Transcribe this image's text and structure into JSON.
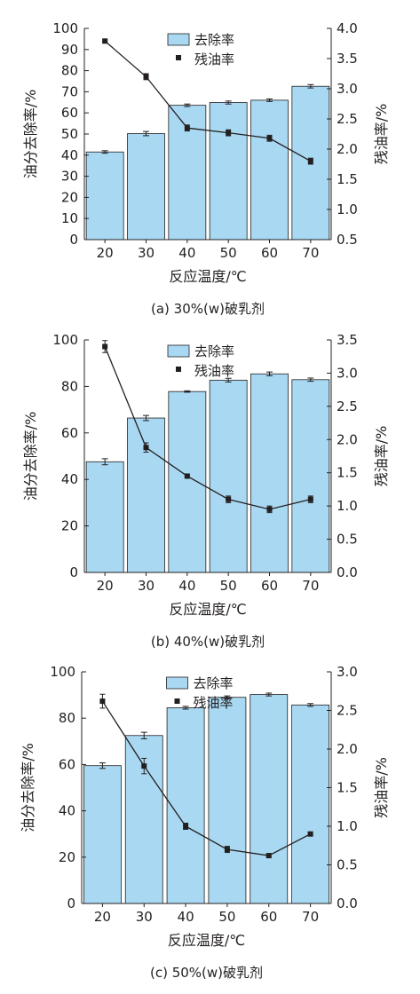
{
  "chart_data": [
    {
      "type": "bar",
      "caption": "(a) 30%(w)破乳剂",
      "xlabel": "反应温度/℃",
      "ylabel": "油分去除率/%",
      "y2label": "残油率/%",
      "categories": [
        "20",
        "30",
        "40",
        "50",
        "60",
        "70"
      ],
      "ylim": [
        0,
        100
      ],
      "yticks": [
        0,
        10,
        20,
        30,
        40,
        50,
        60,
        70,
        80,
        90,
        100
      ],
      "y2lim": [
        0.5,
        4.0
      ],
      "y2ticks": [
        "0.5",
        "1.0",
        "1.5",
        "2.0",
        "2.5",
        "3.0",
        "3.5",
        "4.0"
      ],
      "legend": "top-center",
      "series": [
        {
          "name": "去除率",
          "type": "bar",
          "axis": "left",
          "values": [
            41.5,
            50.2,
            63.6,
            64.9,
            66.0,
            72.6
          ],
          "errors": [
            0.6,
            1.0,
            0.6,
            0.7,
            0.6,
            0.8
          ]
        },
        {
          "name": "残油率",
          "type": "line",
          "axis": "right",
          "values": [
            3.79,
            3.2,
            2.35,
            2.27,
            2.18,
            1.8
          ],
          "errors": [
            0.02,
            0.05,
            0.05,
            0.05,
            0.05,
            0.05
          ]
        }
      ]
    },
    {
      "type": "bar",
      "caption": "(b) 40%(w)破乳剂",
      "xlabel": "反应温度/℃",
      "ylabel": "油分去除率/%",
      "y2label": "残油率/%",
      "categories": [
        "20",
        "30",
        "40",
        "50",
        "60",
        "70"
      ],
      "ylim": [
        0,
        100
      ],
      "yticks": [
        0,
        20,
        40,
        60,
        80,
        100
      ],
      "y2lim": [
        0.0,
        3.5
      ],
      "y2ticks": [
        "0.0",
        "0.5",
        "1.0",
        "1.5",
        "2.0",
        "2.5",
        "3.0",
        "3.5"
      ],
      "legend": "top-center",
      "series": [
        {
          "name": "去除率",
          "type": "bar",
          "axis": "left",
          "values": [
            47.6,
            66.4,
            77.8,
            82.7,
            85.4,
            82.9
          ],
          "errors": [
            1.3,
            1.1,
            0.3,
            0.8,
            0.8,
            0.7
          ]
        },
        {
          "name": "残油率",
          "type": "line",
          "axis": "right",
          "values": [
            3.4,
            1.88,
            1.45,
            1.1,
            0.95,
            1.1
          ],
          "errors": [
            0.09,
            0.07,
            0.02,
            0.05,
            0.05,
            0.05
          ]
        }
      ]
    },
    {
      "type": "bar",
      "caption": "(c) 50%(w)破乳剂",
      "xlabel": "反应温度/℃",
      "ylabel": "油分去除率/%",
      "y2label": "残油率/%",
      "categories": [
        "20",
        "30",
        "40",
        "50",
        "60",
        "70"
      ],
      "ylim": [
        0,
        100
      ],
      "yticks": [
        0,
        20,
        40,
        60,
        80,
        100
      ],
      "y2lim": [
        0.0,
        3.0
      ],
      "y2ticks": [
        "0.0",
        "0.5",
        "1.0",
        "1.5",
        "2.0",
        "2.5",
        "3.0"
      ],
      "legend": "top-center",
      "series": [
        {
          "name": "去除率",
          "type": "bar",
          "axis": "left",
          "values": [
            59.5,
            72.5,
            84.5,
            89.0,
            90.2,
            85.7
          ],
          "errors": [
            1.2,
            1.4,
            0.6,
            0.6,
            0.6,
            0.6
          ]
        },
        {
          "name": "残油率",
          "type": "line",
          "axis": "right",
          "values": [
            2.62,
            1.78,
            1.0,
            0.7,
            0.62,
            0.9
          ],
          "errors": [
            0.09,
            0.1,
            0.04,
            0.04,
            0.02,
            0.02
          ]
        }
      ]
    }
  ],
  "colors": {
    "bar_fill": "#a9d9f2",
    "bar_stroke": "#231f20",
    "line": "#231f20",
    "text": "#231f20"
  }
}
